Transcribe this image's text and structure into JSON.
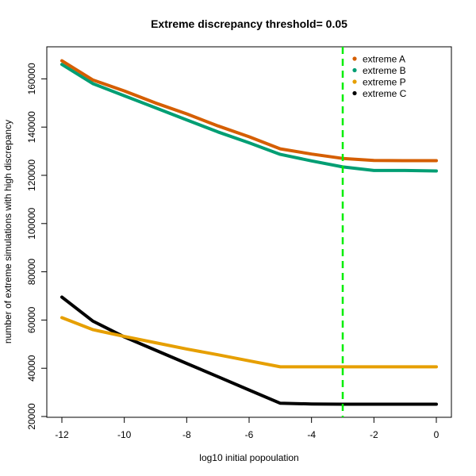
{
  "chart_data": {
    "type": "line",
    "title": "Extreme discrepancy threshold= 0.05",
    "xlabel": "log10 initial popoulation",
    "ylabel": "number of extreme simulations with high discrepancy",
    "xlim": [
      -12,
      0
    ],
    "ylim": [
      20000,
      170000
    ],
    "xticks": [
      -12,
      -10,
      -8,
      -6,
      -4,
      -2,
      0
    ],
    "yticks": [
      20000,
      40000,
      60000,
      80000,
      100000,
      120000,
      140000,
      160000
    ],
    "grid": false,
    "legend_position": "top-right",
    "vline": {
      "x": -3,
      "color": "#00ee00"
    },
    "series": [
      {
        "name": "extreme C",
        "color": "#000000",
        "x": [
          -12,
          -11,
          -10,
          -9,
          -8,
          -7,
          -6,
          -5,
          -4,
          -3,
          -2,
          -1,
          0
        ],
        "y": [
          69500,
          59500,
          53000,
          47500,
          42000,
          36500,
          31000,
          25500,
          25200,
          25100,
          25100,
          25100,
          25100
        ]
      },
      {
        "name": "extreme P",
        "color": "#E69F00",
        "x": [
          -12,
          -11,
          -10,
          -9,
          -8,
          -7,
          -6,
          -5,
          -4,
          -3,
          -2,
          -1,
          0
        ],
        "y": [
          61000,
          56000,
          53200,
          50600,
          48000,
          45600,
          43100,
          40600,
          40600,
          40600,
          40600,
          40600,
          40600
        ]
      },
      {
        "name": "extreme B",
        "color": "#009E73",
        "x": [
          -12,
          -11,
          -10,
          -9,
          -8,
          -7,
          -6,
          -5,
          -4,
          -3,
          -2,
          -1,
          0
        ],
        "y": [
          166000,
          158000,
          153000,
          148000,
          143000,
          138000,
          133500,
          128700,
          126000,
          123500,
          122000,
          122000,
          121800
        ]
      },
      {
        "name": "extreme A",
        "color": "#D55E00",
        "x": [
          -12,
          -11,
          -10,
          -9,
          -8,
          -7,
          -6,
          -5,
          -4,
          -3,
          -2,
          -1,
          0
        ],
        "y": [
          167500,
          159500,
          155000,
          150000,
          145500,
          140500,
          136000,
          131000,
          128800,
          127000,
          126200,
          126100,
          126100
        ]
      }
    ]
  }
}
